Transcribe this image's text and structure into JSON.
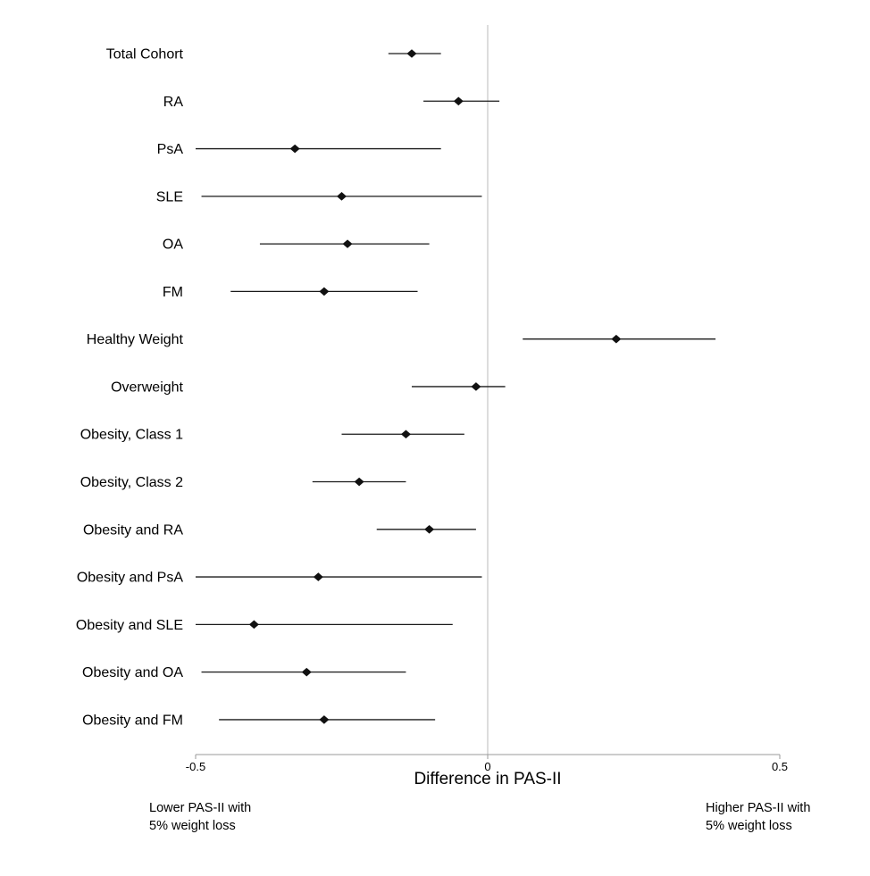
{
  "chart_data": {
    "type": "forest",
    "title": "",
    "xlabel": "Difference in PAS-II",
    "xlim": [
      -0.5,
      0.5
    ],
    "x_ticks": [
      -0.5,
      0,
      0.5
    ],
    "x_tick_labels": [
      "-0.5",
      "0",
      "0.5"
    ],
    "zero_line": 0,
    "grid": false,
    "legend": "none",
    "annotations": {
      "left": [
        "Lower PAS-II with",
        "5% weight loss"
      ],
      "right": [
        "Higher PAS-II with",
        "5% weight loss"
      ]
    },
    "rows": [
      {
        "label": "Total Cohort",
        "estimate": -0.13,
        "ci_lower": -0.17,
        "ci_upper": -0.08
      },
      {
        "label": "RA",
        "estimate": -0.05,
        "ci_lower": -0.11,
        "ci_upper": 0.02
      },
      {
        "label": "PsA",
        "estimate": -0.33,
        "ci_lower": -0.5,
        "ci_upper": -0.08
      },
      {
        "label": "SLE",
        "estimate": -0.25,
        "ci_lower": -0.49,
        "ci_upper": -0.01
      },
      {
        "label": "OA",
        "estimate": -0.24,
        "ci_lower": -0.39,
        "ci_upper": -0.1
      },
      {
        "label": "FM",
        "estimate": -0.28,
        "ci_lower": -0.44,
        "ci_upper": -0.12
      },
      {
        "label": "Healthy Weight",
        "estimate": 0.22,
        "ci_lower": 0.06,
        "ci_upper": 0.39
      },
      {
        "label": "Overweight",
        "estimate": -0.02,
        "ci_lower": -0.13,
        "ci_upper": 0.03
      },
      {
        "label": "Obesity, Class 1",
        "estimate": -0.14,
        "ci_lower": -0.25,
        "ci_upper": -0.04
      },
      {
        "label": "Obesity, Class 2",
        "estimate": -0.22,
        "ci_lower": -0.3,
        "ci_upper": -0.14
      },
      {
        "label": "Obesity and RA",
        "estimate": -0.1,
        "ci_lower": -0.19,
        "ci_upper": -0.02
      },
      {
        "label": "Obesity and PsA",
        "estimate": -0.29,
        "ci_lower": -0.5,
        "ci_upper": -0.01
      },
      {
        "label": "Obesity and SLE",
        "estimate": -0.4,
        "ci_lower": -0.5,
        "ci_upper": -0.06
      },
      {
        "label": "Obesity and OA",
        "estimate": -0.31,
        "ci_lower": -0.49,
        "ci_upper": -0.14
      },
      {
        "label": "Obesity and FM",
        "estimate": -0.28,
        "ci_lower": -0.46,
        "ci_upper": -0.09
      }
    ]
  },
  "colors": {
    "marker": "#111111",
    "ci_line": "#1a1a1a",
    "zero_line": "#c6c6c6",
    "axis": "#9a9a9a",
    "text": "#000000"
  }
}
